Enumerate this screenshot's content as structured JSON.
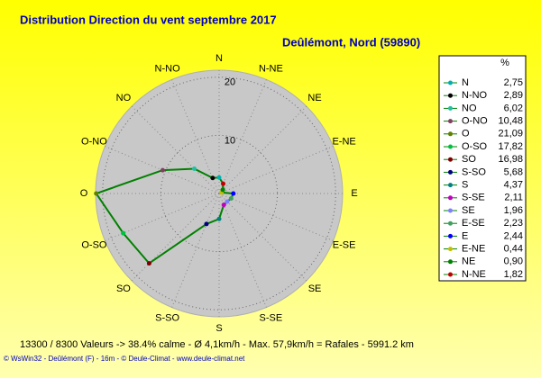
{
  "chart_data": {
    "type": "radar",
    "title": "Distribution Direction du vent   septembre 2017",
    "subtitle": "Deûlémont, Nord (59890)",
    "legend_title": "%",
    "categories": [
      "N",
      "N-NO",
      "NO",
      "O-NO",
      "O",
      "O-SO",
      "SO",
      "S-SO",
      "S",
      "S-SE",
      "SE",
      "E-SE",
      "E",
      "E-NE",
      "NE",
      "N-NE"
    ],
    "values": [
      2.75,
      2.89,
      6.02,
      10.48,
      21.09,
      17.82,
      16.98,
      5.68,
      4.37,
      2.11,
      1.96,
      2.23,
      2.44,
      0.44,
      0.9,
      1.82
    ],
    "value_labels": [
      "2,75",
      "2,89",
      "6,02",
      "10,48",
      "21,09",
      "17,82",
      "16,98",
      "5,68",
      "4,37",
      "2,11",
      "1,96",
      "2,23",
      "2,44",
      "0,44",
      "0,90",
      "1,82"
    ],
    "colors": [
      "#00b0b0",
      "#000000",
      "#20c0a0",
      "#804060",
      "#608000",
      "#00c040",
      "#800000",
      "#000080",
      "#008080",
      "#c000c0",
      "#8080ff",
      "#40a060",
      "#0000ff",
      "#c0c000",
      "#008000",
      "#c00000"
    ],
    "line_color": "#008000",
    "rlim": [
      0,
      21.2
    ],
    "rticks": [
      10,
      20
    ],
    "footer": [
      "13300 / 8300 Valeurs  -> 38.4% calme   -   Ø 4,1km/h  -  Max. 57,9km/h = Rafales   -   5991.2 km",
      "© WsWin32  -  Deûlémont (F) - 16m  -  © Deule-Climat  -  www.deule-climat.net"
    ]
  }
}
